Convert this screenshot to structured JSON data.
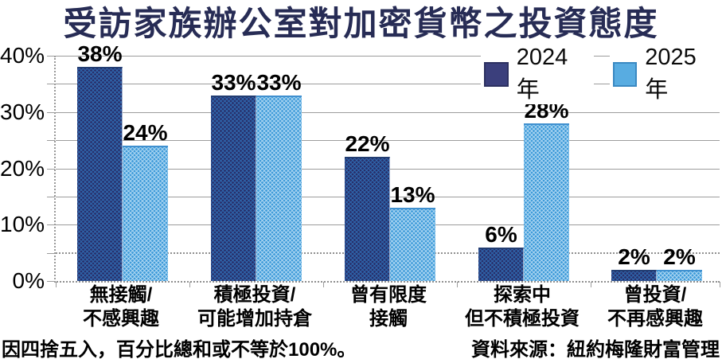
{
  "title": "受訪家族辦公室對加密貨幣之投資態度",
  "footnote": "因四捨五入，百分比總和或不等於100%。",
  "source": "資料來源：紐約梅隆財富管理",
  "colors": {
    "title": "#272c55",
    "bar_2024_base": "#2f65ab",
    "bar_2024_dots": "#282f6a",
    "bar_2025_base": "#a9d4f1",
    "bar_2025_dots": "#3f9bd9",
    "legend_2024": "#3b3f7c",
    "legend_2024_border": "#2c3060",
    "legend_2025": "#58ace1",
    "legend_2025_border": "#3a89c2",
    "gridline": "#9c9c9c",
    "value_label": "#000000"
  },
  "legend": {
    "position": "top-right",
    "items": [
      {
        "label": "2024年",
        "color": "#3b3f7c",
        "border": "#2c3060"
      },
      {
        "label": "2025年",
        "color": "#58ace1",
        "border": "#3a89c2"
      }
    ]
  },
  "chart_data": {
    "type": "bar",
    "title": "受訪家族辦公室對加密貨幣之投資態度",
    "categories": [
      {
        "line1": "無接觸/",
        "line2": "不感興趣"
      },
      {
        "line1": "積極投資/",
        "line2": "可能增加持倉"
      },
      {
        "line1": "曾有限度",
        "line2": "接觸"
      },
      {
        "line1": "探索中",
        "line2": "但不積極投資"
      },
      {
        "line1": "曾投資/",
        "line2": "不再感興趣"
      }
    ],
    "series": [
      {
        "name": "2024年",
        "values": [
          38,
          33,
          22,
          6,
          2
        ]
      },
      {
        "name": "2025年",
        "values": [
          24,
          33,
          13,
          28,
          2
        ]
      }
    ],
    "xlabel": "",
    "ylabel": "",
    "ylim": [
      0,
      40
    ],
    "yticks": [
      0,
      10,
      20,
      30,
      40
    ],
    "grid_step": 5,
    "dotted_levels": [
      5,
      0
    ],
    "value_suffix": "%",
    "grid": "on",
    "legend_position": "top-right"
  }
}
